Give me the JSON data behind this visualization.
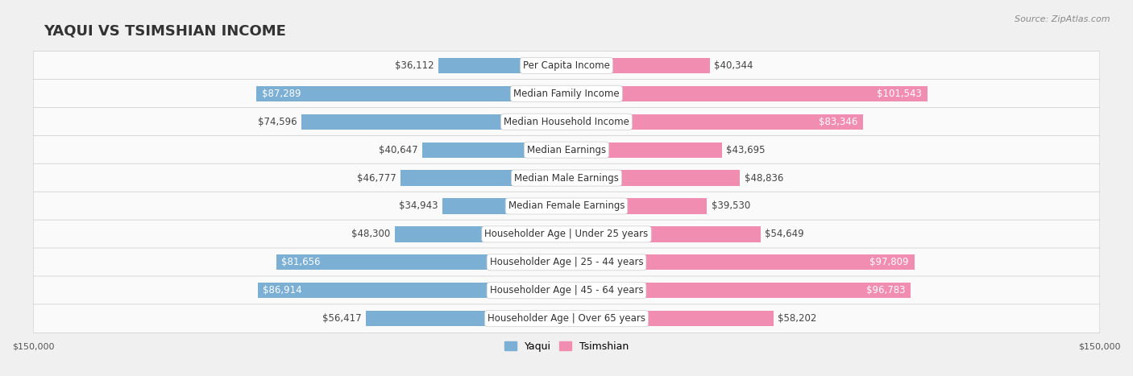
{
  "title": "YAQUI VS TSIMSHIAN INCOME",
  "source": "Source: ZipAtlas.com",
  "categories": [
    "Per Capita Income",
    "Median Family Income",
    "Median Household Income",
    "Median Earnings",
    "Median Male Earnings",
    "Median Female Earnings",
    "Householder Age | Under 25 years",
    "Householder Age | 25 - 44 years",
    "Householder Age | 45 - 64 years",
    "Householder Age | Over 65 years"
  ],
  "yaqui_values": [
    36112,
    87289,
    74596,
    40647,
    46777,
    34943,
    48300,
    81656,
    86914,
    56417
  ],
  "tsimshian_values": [
    40344,
    101543,
    83346,
    43695,
    48836,
    39530,
    54649,
    97809,
    96783,
    58202
  ],
  "yaqui_labels": [
    "$36,112",
    "$87,289",
    "$74,596",
    "$40,647",
    "$46,777",
    "$34,943",
    "$48,300",
    "$81,656",
    "$86,914",
    "$56,417"
  ],
  "tsimshian_labels": [
    "$40,344",
    "$101,543",
    "$83,346",
    "$43,695",
    "$48,836",
    "$39,530",
    "$54,649",
    "$97,809",
    "$96,783",
    "$58,202"
  ],
  "yaqui_color": "#7bafd4",
  "tsimshian_color": "#f08db0",
  "yaqui_color_dark": "#5b8fbf",
  "tsimshian_color_dark": "#e8608a",
  "background_color": "#f0f0f0",
  "row_bg_color": "#fafafa",
  "xlim": 150000,
  "bar_height": 0.55,
  "title_fontsize": 13,
  "label_fontsize": 8.5,
  "category_fontsize": 8.5,
  "axis_label_fontsize": 8,
  "legend_fontsize": 9,
  "large_value_threshold": 80000,
  "large_tsimshian_labels": [
    "$101,543",
    "$97,809",
    "$96,783"
  ],
  "large_tsimshian_rows": [
    1,
    7,
    8
  ]
}
